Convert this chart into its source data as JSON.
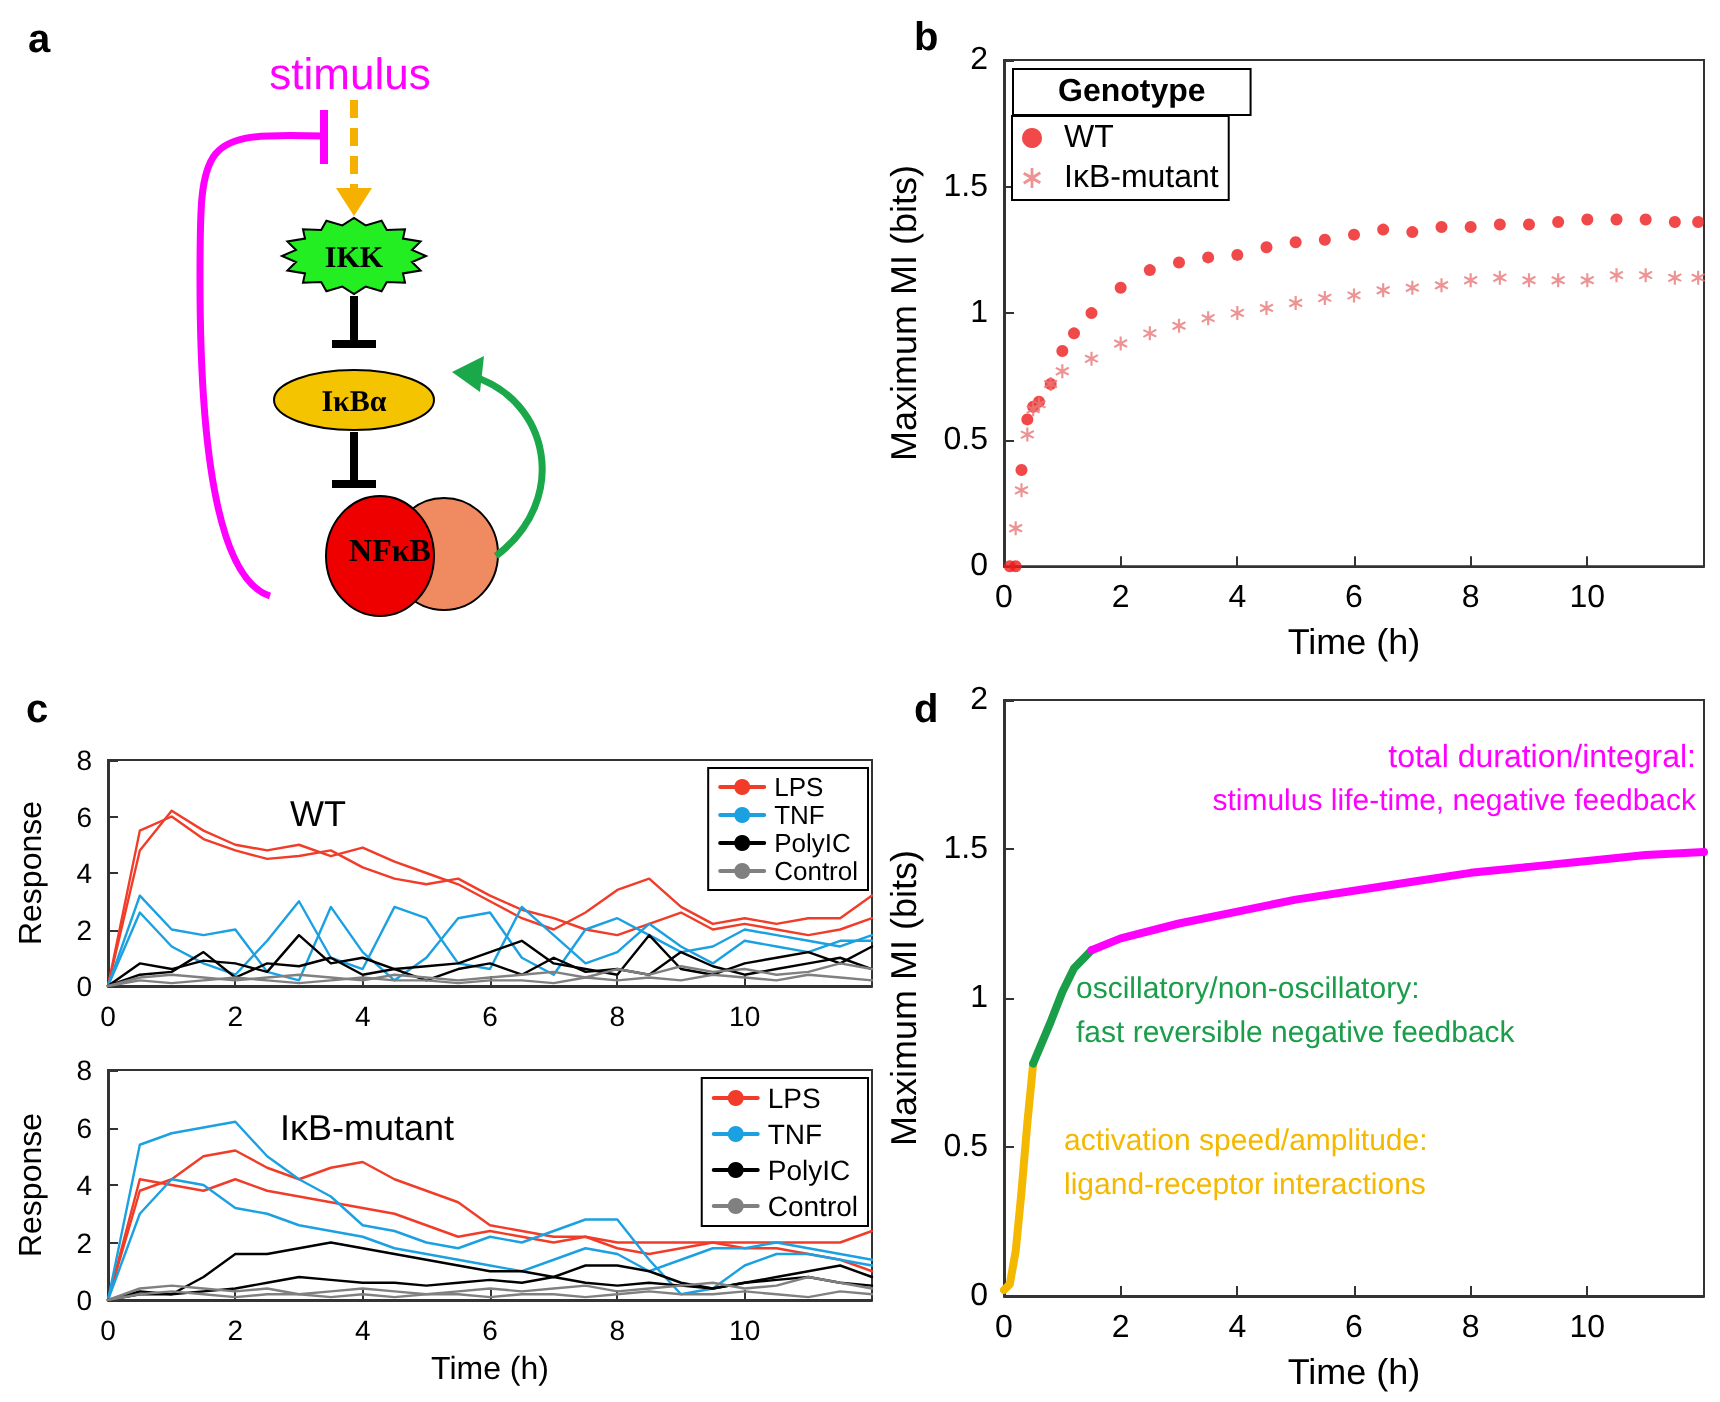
{
  "chart_data": [
    {
      "type": "other",
      "title": "a",
      "annotations": [
        "stimulus",
        "IKK",
        "IκBα",
        "NFκB"
      ]
    },
    {
      "type": "scatter",
      "title": "b",
      "xlabel": "Time (h)",
      "ylabel": "Maximum MI (bits)",
      "xlim": [
        0,
        12
      ],
      "xticks": [
        0,
        2,
        4,
        6,
        8,
        10
      ],
      "ylim": [
        0,
        2
      ],
      "yticks": [
        0,
        0.5,
        1,
        1.5,
        2
      ],
      "legend": "top left",
      "legend_title": "Genotype",
      "series": [
        {
          "name": "WT",
          "color": "#ee1c1c",
          "marker": "circle",
          "x": [
            0.1,
            0.2,
            0.3,
            0.4,
            0.5,
            0.6,
            0.8,
            1.0,
            1.2,
            1.5,
            2,
            2.5,
            3,
            3.5,
            4,
            4.5,
            5,
            5.5,
            6,
            6.5,
            7,
            7.5,
            8,
            8.5,
            9,
            9.5,
            10,
            10.5,
            11,
            11.5,
            11.9
          ],
          "values": [
            0,
            0,
            0.38,
            0.58,
            0.63,
            0.65,
            0.72,
            0.85,
            0.92,
            1.0,
            1.1,
            1.17,
            1.2,
            1.22,
            1.23,
            1.26,
            1.28,
            1.29,
            1.31,
            1.33,
            1.32,
            1.34,
            1.34,
            1.35,
            1.35,
            1.36,
            1.37,
            1.37,
            1.37,
            1.36,
            1.36
          ]
        },
        {
          "name": "IκB-mutant",
          "color": "#e87878",
          "marker": "cross",
          "x": [
            0.2,
            0.3,
            0.4,
            0.5,
            0.6,
            0.8,
            1.0,
            1.5,
            2,
            2.5,
            3,
            3.5,
            4,
            4.5,
            5,
            5.5,
            6,
            6.5,
            7,
            7.5,
            8,
            8.5,
            9,
            9.5,
            10,
            10.5,
            11,
            11.5,
            11.9
          ],
          "values": [
            0.15,
            0.3,
            0.52,
            0.62,
            0.64,
            0.72,
            0.77,
            0.82,
            0.88,
            0.92,
            0.95,
            0.98,
            1.0,
            1.02,
            1.04,
            1.06,
            1.07,
            1.09,
            1.1,
            1.11,
            1.13,
            1.14,
            1.13,
            1.13,
            1.13,
            1.15,
            1.15,
            1.14,
            1.14
          ]
        }
      ]
    },
    {
      "type": "line",
      "title": "c",
      "ylabel": "Response",
      "xlim": [
        0,
        12
      ],
      "xticks": [
        0,
        2,
        4,
        6,
        8,
        10
      ],
      "ylim": [
        0,
        8
      ],
      "yticks": [
        0,
        2,
        4,
        6,
        8
      ],
      "legend": "top right",
      "annotations": [
        "WT"
      ],
      "x": [
        0,
        0.5,
        1,
        1.5,
        2,
        2.5,
        3,
        3.5,
        4,
        4.5,
        5,
        5.5,
        6,
        6.5,
        7,
        7.5,
        8,
        8.5,
        9,
        9.5,
        10,
        10.5,
        11,
        11.5,
        12
      ],
      "series": [
        {
          "name": "LPS",
          "color": "#f03c28",
          "values": [
            0,
            4.8,
            6.2,
            5.5,
            5.0,
            4.8,
            5.0,
            4.6,
            4.9,
            4.4,
            4.0,
            3.6,
            3.0,
            2.4,
            2.0,
            2.6,
            3.4,
            3.8,
            2.8,
            2.2,
            2.4,
            2.2,
            2.4,
            2.4,
            3.2
          ]
        },
        {
          "color": "#f03c28",
          "values": [
            0,
            5.5,
            6.0,
            5.2,
            4.8,
            4.5,
            4.6,
            4.8,
            4.2,
            3.8,
            3.6,
            3.8,
            3.2,
            2.7,
            2.4,
            2.0,
            1.8,
            2.2,
            2.6,
            2.0,
            2.2,
            2.0,
            1.8,
            2.0,
            2.4
          ]
        },
        {
          "name": "TNF",
          "color": "#1ba1e2",
          "values": [
            0,
            3.2,
            2.0,
            1.8,
            2.0,
            0.5,
            0.2,
            2.8,
            1.2,
            0.2,
            1.0,
            2.4,
            2.6,
            1.0,
            0.4,
            2.0,
            2.4,
            1.8,
            1.2,
            1.4,
            2.0,
            1.8,
            1.6,
            1.4,
            1.8
          ]
        },
        {
          "color": "#1ba1e2",
          "values": [
            0,
            2.6,
            1.4,
            0.8,
            0.4,
            1.6,
            3.0,
            1.0,
            0.6,
            2.8,
            2.4,
            0.8,
            0.6,
            2.8,
            1.8,
            0.8,
            1.2,
            2.2,
            1.4,
            0.8,
            1.6,
            1.4,
            1.2,
            1.6,
            1.6
          ]
        },
        {
          "name": "PolyIC",
          "color": "#000000",
          "values": [
            0,
            0.8,
            0.6,
            0.9,
            0.8,
            0.5,
            1.8,
            0.8,
            1.0,
            0.6,
            0.7,
            0.8,
            1.2,
            1.6,
            0.8,
            0.6,
            0.4,
            1.8,
            0.6,
            0.4,
            0.8,
            1.0,
            1.2,
            0.8,
            1.4
          ]
        },
        {
          "color": "#000000",
          "values": [
            0,
            0.4,
            0.5,
            1.2,
            0.3,
            0.8,
            0.7,
            1.0,
            0.4,
            0.6,
            0.2,
            0.6,
            0.8,
            0.4,
            1.0,
            0.5,
            0.6,
            0.4,
            1.2,
            0.7,
            0.4,
            0.6,
            0.8,
            1.0,
            0.6
          ]
        },
        {
          "name": "Control",
          "color": "#808080",
          "values": [
            0,
            0.3,
            0.4,
            0.3,
            0.2,
            0.3,
            0.4,
            0.3,
            0.2,
            0.4,
            0.3,
            0.2,
            0.3,
            0.4,
            0.5,
            0.3,
            0.6,
            0.4,
            0.7,
            0.5,
            0.6,
            0.4,
            0.5,
            0.8,
            0.6
          ]
        },
        {
          "color": "#808080",
          "values": [
            0,
            0.2,
            0.1,
            0.2,
            0.3,
            0.2,
            0.1,
            0.2,
            0.3,
            0.2,
            0.2,
            0.1,
            0.2,
            0.2,
            0.1,
            0.3,
            0.2,
            0.3,
            0.2,
            0.4,
            0.3,
            0.2,
            0.4,
            0.3,
            0.2
          ]
        }
      ]
    },
    {
      "type": "line",
      "xlabel": "Time (h)",
      "ylabel": "Response",
      "xlim": [
        0,
        12
      ],
      "xticks": [
        0,
        2,
        4,
        6,
        8,
        10
      ],
      "ylim": [
        0,
        8
      ],
      "yticks": [
        0,
        2,
        4,
        6,
        8
      ],
      "legend": "top right",
      "annotations": [
        "IκB-mutant"
      ],
      "x": [
        0,
        0.5,
        1,
        1.5,
        2,
        2.5,
        3,
        3.5,
        4,
        4.5,
        5,
        5.5,
        6,
        6.5,
        7,
        7.5,
        8,
        8.5,
        9,
        9.5,
        10,
        10.5,
        11,
        11.5,
        12
      ],
      "series": [
        {
          "name": "LPS",
          "color": "#f03c28",
          "values": [
            0,
            3.8,
            4.2,
            5.0,
            5.2,
            4.6,
            4.2,
            4.6,
            4.8,
            4.2,
            3.8,
            3.4,
            2.6,
            2.4,
            2.2,
            2.2,
            2.0,
            2.0,
            2.0,
            2.0,
            2.0,
            2.0,
            2.0,
            2.0,
            2.4
          ]
        },
        {
          "color": "#f03c28",
          "values": [
            0,
            4.2,
            4.0,
            3.8,
            4.2,
            3.8,
            3.6,
            3.4,
            3.2,
            3.0,
            2.6,
            2.2,
            2.4,
            2.2,
            2.0,
            2.2,
            1.8,
            1.6,
            1.8,
            2.0,
            1.8,
            1.8,
            1.6,
            1.4,
            1.0
          ]
        },
        {
          "name": "TNF",
          "color": "#1ba1e2",
          "values": [
            0,
            5.4,
            5.8,
            6.0,
            6.2,
            5.0,
            4.2,
            3.6,
            2.6,
            2.4,
            2.0,
            1.8,
            2.2,
            2.0,
            2.4,
            2.8,
            2.8,
            1.4,
            0.2,
            0.4,
            1.2,
            1.6,
            1.6,
            1.4,
            1.2
          ]
        },
        {
          "color": "#1ba1e2",
          "values": [
            0,
            3.0,
            4.2,
            4.0,
            3.2,
            3.0,
            2.6,
            2.4,
            2.2,
            1.8,
            1.6,
            1.4,
            1.2,
            1.0,
            1.4,
            1.8,
            1.6,
            1.0,
            1.4,
            1.8,
            1.8,
            2.0,
            1.8,
            1.6,
            1.4
          ]
        },
        {
          "name": "PolyIC",
          "color": "#000000",
          "values": [
            0,
            0.2,
            0.2,
            0.8,
            1.6,
            1.6,
            1.8,
            2.0,
            1.8,
            1.6,
            1.4,
            1.2,
            1.0,
            1.0,
            0.8,
            1.2,
            1.2,
            1.0,
            0.6,
            0.4,
            0.6,
            0.8,
            1.0,
            1.2,
            0.8
          ]
        },
        {
          "color": "#000000",
          "values": [
            0,
            0.3,
            0.2,
            0.3,
            0.4,
            0.6,
            0.8,
            0.7,
            0.6,
            0.6,
            0.5,
            0.6,
            0.7,
            0.6,
            0.8,
            0.6,
            0.5,
            0.6,
            0.5,
            0.4,
            0.6,
            0.7,
            0.8,
            0.6,
            0.5
          ]
        },
        {
          "name": "Control",
          "color": "#808080",
          "values": [
            0,
            0.4,
            0.5,
            0.4,
            0.3,
            0.4,
            0.2,
            0.3,
            0.4,
            0.3,
            0.2,
            0.3,
            0.4,
            0.3,
            0.4,
            0.5,
            0.3,
            0.4,
            0.5,
            0.6,
            0.4,
            0.5,
            0.8,
            0.6,
            0.4
          ]
        },
        {
          "color": "#808080",
          "values": [
            0,
            0.2,
            0.3,
            0.2,
            0.1,
            0.2,
            0.2,
            0.1,
            0.2,
            0.1,
            0.2,
            0.2,
            0.1,
            0.2,
            0.2,
            0.1,
            0.2,
            0.3,
            0.2,
            0.2,
            0.3,
            0.2,
            0.1,
            0.3,
            0.2
          ]
        }
      ]
    },
    {
      "type": "line",
      "title": "d",
      "xlabel": "Time (h)",
      "ylabel": "Maximum MI (bits)",
      "xlim": [
        0,
        12
      ],
      "xticks": [
        0,
        2,
        4,
        6,
        8,
        10
      ],
      "ylim": [
        0,
        2
      ],
      "yticks": [
        0,
        0.5,
        1,
        1.5,
        2
      ],
      "annotations": [
        "total duration/integral:",
        "stimulus life-time, negative feedback",
        "oscillatory/non-oscillatory:",
        "fast reversible negative feedback",
        "activation speed/amplitude:",
        "ligand-receptor interactions"
      ],
      "series": [
        {
          "color": "#f5b800",
          "x": [
            0,
            0.1,
            0.2,
            0.3,
            0.4,
            0.5
          ],
          "values": [
            0.02,
            0.04,
            0.15,
            0.35,
            0.58,
            0.78
          ]
        },
        {
          "color": "#1a9e4a",
          "x": [
            0.5,
            0.8,
            1.0,
            1.2,
            1.5
          ],
          "values": [
            0.78,
            0.92,
            1.02,
            1.1,
            1.16
          ]
        },
        {
          "color": "#ff00ff",
          "x": [
            1.5,
            2,
            3,
            4,
            5,
            6,
            7,
            8,
            9,
            10,
            11,
            12
          ],
          "values": [
            1.16,
            1.2,
            1.25,
            1.29,
            1.33,
            1.36,
            1.39,
            1.42,
            1.44,
            1.46,
            1.48,
            1.49
          ]
        }
      ]
    }
  ]
}
